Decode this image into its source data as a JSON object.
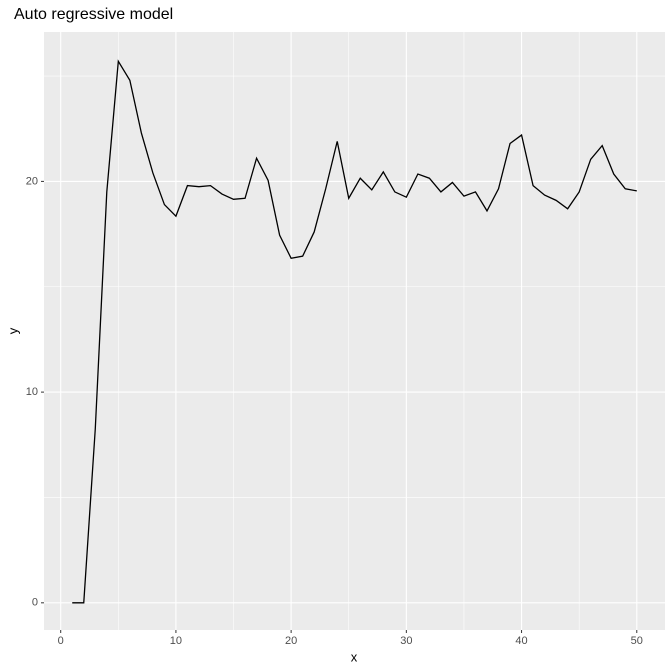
{
  "chart_data": {
    "type": "line",
    "title": "Auto regressive model",
    "x_label": "x",
    "y_label": "y",
    "x": [
      1,
      2,
      3,
      4,
      5,
      6,
      7,
      8,
      9,
      10,
      11,
      12,
      13,
      14,
      15,
      16,
      17,
      18,
      19,
      20,
      21,
      22,
      23,
      24,
      25,
      26,
      27,
      28,
      29,
      30,
      31,
      32,
      33,
      34,
      35,
      36,
      37,
      38,
      39,
      40,
      41,
      42,
      43,
      44,
      45,
      46,
      47,
      48,
      49,
      50
    ],
    "series": [
      {
        "name": "y",
        "color": "#000000",
        "values": [
          0,
          0,
          8.25,
          19.5,
          25.7,
          24.8,
          22.3,
          20.4,
          18.9,
          18.35,
          19.8,
          19.75,
          19.8,
          19.4,
          19.15,
          19.2,
          21.1,
          20.05,
          17.45,
          16.35,
          16.45,
          17.6,
          19.65,
          21.9,
          19.2,
          20.15,
          19.6,
          20.45,
          19.5,
          19.25,
          20.35,
          20.15,
          19.5,
          19.95,
          19.3,
          19.5,
          18.6,
          19.65,
          21.8,
          22.2,
          19.8,
          19.35,
          19.1,
          18.7,
          19.5,
          21.05,
          21.7,
          20.35,
          19.65,
          19.55
        ]
      }
    ],
    "xlim": [
      -1.45,
      52.45
    ],
    "ylim": [
      -1.29,
      27.09
    ],
    "xticks": [
      0,
      10,
      20,
      30,
      40,
      50
    ],
    "yticks": [
      0,
      10,
      20
    ],
    "x_minor_ticks": [
      5,
      15,
      25,
      35,
      45
    ],
    "y_minor_ticks": [
      5,
      15,
      25
    ],
    "grid": true
  }
}
